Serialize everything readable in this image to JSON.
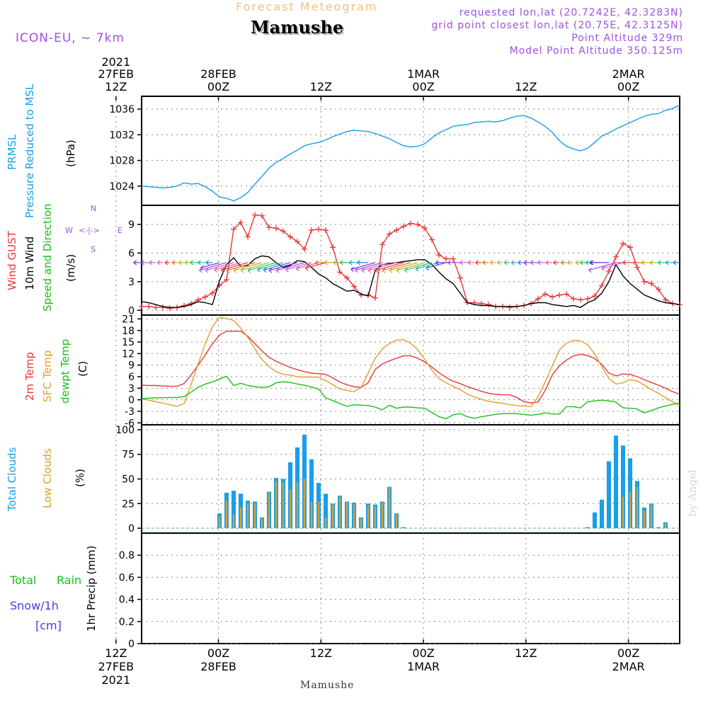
{
  "header": {
    "title": "Forecast Meteogram",
    "location": "Mamushe",
    "model": "ICON-EU, ~ 7km",
    "requested": "requested lon,lat (20.7242E, 42.3283N)",
    "gridpoint": "grid point closest lon,lat (20.75E, 42.3125N)",
    "point_alt": "Point Altitude 329m",
    "model_alt": "Model Point Altitude 350.125m"
  },
  "footer_label": "Mamushe",
  "signature": "by Angel",
  "top_axis": [
    {
      "l1": "2021",
      "l2": "27FEB",
      "l3": "12Z"
    },
    {
      "l1": "",
      "l2": "28FEB",
      "l3": "00Z"
    },
    {
      "l1": "",
      "l2": "",
      "l3": "12Z"
    },
    {
      "l1": "",
      "l2": "1MAR",
      "l3": "00Z"
    },
    {
      "l1": "",
      "l2": "",
      "l3": "12Z"
    },
    {
      "l1": "",
      "l2": "2MAR",
      "l3": "00Z"
    }
  ],
  "bottom_axis": [
    {
      "l1": "12Z",
      "l2": "27FEB",
      "l3": "2021"
    },
    {
      "l1": "00Z",
      "l2": "28FEB",
      "l3": ""
    },
    {
      "l1": "12Z",
      "l2": "",
      "l3": ""
    },
    {
      "l1": "00Z",
      "l2": "1MAR",
      "l3": ""
    },
    {
      "l1": "12Z",
      "l2": "",
      "l3": ""
    },
    {
      "l1": "00Z",
      "l2": "2MAR",
      "l3": ""
    }
  ],
  "colors": {
    "pressure": "#1a9ee8",
    "gust": "#e83838",
    "wind": "#000000",
    "temp2m": "#e83838",
    "sfc": "#e0a030",
    "dewpt": "#18c018",
    "cloud_total": "#1a9ee8",
    "cloud_low": "#d8a030",
    "dir": "#a050e0",
    "rain": "#18c018",
    "snow": "#4040e0"
  },
  "panel_labels": {
    "pressure": [
      "PRMSL",
      "Pressure Reduced to MSL",
      "(hPa)"
    ],
    "wind": [
      "Wind GUST",
      "10m Wind",
      "Speed and Direction",
      "(m/s)"
    ],
    "compass": {
      "n": "N",
      "s": "S",
      "w": "W",
      "e": "E"
    },
    "temp": [
      "2m Temp",
      "SFC Temp",
      "dewpt Temp",
      "(C)"
    ],
    "cloud": [
      "Total Clouds",
      "Low Clouds",
      "(%)"
    ],
    "precip": [
      "Total",
      "Rain",
      "Snow/1h",
      "[cm]",
      "1hr Precip (mm)"
    ]
  },
  "chart_data": {
    "type": "meteogram",
    "time_axis": {
      "start_hour": -9,
      "end_hour": 54,
      "note": "hours relative to 28FEB 00Z"
    },
    "panels": [
      {
        "id": "pressure",
        "type": "line",
        "ylim": [
          1021,
          1038
        ],
        "yticks": [
          1024,
          1028,
          1032,
          1036
        ],
        "series": [
          {
            "name": "PRMSL",
            "values": [
              1024,
              1023.9,
              1023.8,
              1023.7,
              1023.8,
              1024,
              1024.5,
              1024.3,
              1024.4,
              1023.9,
              1023.2,
              1022.3,
              1022.1,
              1021.7,
              1022.2,
              1023,
              1024.3,
              1025.5,
              1026.8,
              1027.7,
              1028.3,
              1029,
              1029.6,
              1030.3,
              1030.6,
              1030.8,
              1031.2,
              1031.7,
              1032.1,
              1032.5,
              1032.7,
              1032.6,
              1032.5,
              1032.2,
              1031.8,
              1031.4,
              1030.8,
              1030.3,
              1030.1,
              1030.2,
              1030.6,
              1031.5,
              1032.3,
              1032.8,
              1033.3,
              1033.5,
              1033.6,
              1033.9,
              1034,
              1034.1,
              1034,
              1034.2,
              1034.6,
              1034.9,
              1035,
              1034.6,
              1034,
              1033.3,
              1032.4,
              1031.1,
              1030.2,
              1029.8,
              1029.5,
              1029.9,
              1030.8,
              1031.8,
              1032.3,
              1032.9,
              1033.4,
              1033.9,
              1034.4,
              1034.9,
              1035.2,
              1035.3,
              1035.8,
              1036.1,
              1036.6
            ]
          }
        ]
      },
      {
        "id": "wind",
        "type": "line",
        "ylim": [
          -0.5,
          11
        ],
        "yticks": [
          0,
          3,
          6,
          9
        ],
        "series": [
          {
            "name": "Wind GUST",
            "values": [
              0.4,
              0.4,
              0.3,
              0.3,
              0.2,
              0.3,
              0.5,
              0.7,
              1.1,
              1.4,
              1.8,
              2.6,
              3.2,
              8.5,
              9.2,
              7.7,
              10,
              9.9,
              8.7,
              8.6,
              8.3,
              7.7,
              7.2,
              6.4,
              8.4,
              8.5,
              8.4,
              6.6,
              4,
              3.4,
              2.5,
              1.6,
              1.6,
              1.3,
              6.9,
              8,
              8.4,
              8.8,
              9.1,
              9,
              8.6,
              7.4,
              5.8,
              5.4,
              5.4,
              3.4,
              0.8,
              0.8,
              0.7,
              0.6,
              0.4,
              0.4,
              0.3,
              0.4,
              0.5,
              0.7,
              1.2,
              1.7,
              1.4,
              1.6,
              1.7,
              1.2,
              1.1,
              1.2,
              1.5,
              2.6,
              4.1,
              5.6,
              7,
              6.6,
              4.5,
              3,
              2.8,
              2.2,
              1.1,
              0.7,
              0.6
            ]
          },
          {
            "name": "10m Wind",
            "values": [
              0.9,
              0.8,
              0.6,
              0.4,
              0.3,
              0.3,
              0.4,
              0.6,
              0.9,
              0.8,
              0.6,
              3.1,
              4.8,
              5.5,
              4.6,
              4.7,
              5.4,
              5.7,
              5.6,
              5,
              4.5,
              4.7,
              5.2,
              5.1,
              4.5,
              3.8,
              3.4,
              2.8,
              2.4,
              2,
              2.1,
              1.7,
              1.5,
              4.2,
              4.8,
              4.9,
              5,
              5.1,
              5.2,
              5.3,
              5.3,
              4.8,
              4,
              3.3,
              2.8,
              1.8,
              0.8,
              0.6,
              0.5,
              0.5,
              0.4,
              0.4,
              0.4,
              0.4,
              0.5,
              0.7,
              0.8,
              0.8,
              0.6,
              0.5,
              0.4,
              0.5,
              0.3,
              0.8,
              1.1,
              1.8,
              3,
              4.8,
              3.6,
              2.8,
              2.2,
              1.6,
              1.3,
              1,
              0.8,
              0.7,
              0.6
            ]
          }
        ],
        "direction_level": 5
      },
      {
        "id": "temp",
        "type": "line",
        "ylim": [
          -6.5,
          22
        ],
        "yticks": [
          -6,
          -3,
          0,
          3,
          6,
          9,
          12,
          15,
          18,
          21
        ],
        "series": [
          {
            "name": "2m Temp",
            "values": [
              3.8,
              3.7,
              3.7,
              3.6,
              3.5,
              3.5,
              4.2,
              6.5,
              9,
              11.7,
              14.5,
              16.8,
              17.8,
              17.8,
              17.8,
              16.5,
              14.6,
              12.7,
              11,
              10,
              9.2,
              8.4,
              7.8,
              7.3,
              6.9,
              6.8,
              6.6,
              5.7,
              4.6,
              3.9,
              3.4,
              3.2,
              4.4,
              7.9,
              9.3,
              10.1,
              10.8,
              11.4,
              11.4,
              10.8,
              9.8,
              8.5,
              7,
              5.8,
              4.8,
              4.2,
              3.4,
              2.8,
              2.2,
              1.7,
              1.4,
              1.3,
              1.3,
              0.6,
              -0.5,
              -0.8,
              -0.6,
              2.4,
              6.4,
              8.8,
              10.3,
              11.4,
              11.8,
              11.5,
              10.7,
              9.2,
              6.9,
              6.2,
              6.7,
              6.6,
              6,
              5.2,
              4.5,
              3.8,
              3,
              2.1,
              1.4
            ]
          },
          {
            "name": "SFC Temp",
            "values": [
              0.2,
              -0.1,
              -0.5,
              -0.9,
              -1.3,
              -1.7,
              -1,
              4,
              9.4,
              14.6,
              19,
              21.4,
              21.1,
              20.6,
              18.6,
              16.2,
              13.2,
              10.5,
              8.6,
              7.3,
              6.6,
              6.4,
              6,
              5.9,
              5.9,
              5.9,
              5,
              3.9,
              2.8,
              2.4,
              2.1,
              3.2,
              6.9,
              10.8,
              13.2,
              14.6,
              15.5,
              15.6,
              14.7,
              13,
              10.5,
              7.7,
              5.5,
              4.4,
              3.5,
              2.6,
              1.5,
              0.7,
              0.1,
              -0.4,
              -0.7,
              -0.9,
              -1.3,
              -1.5,
              -1.6,
              -1.8,
              0.8,
              4.6,
              8.8,
              12.9,
              14.7,
              15.4,
              15.3,
              14.3,
              11.9,
              8.6,
              5.5,
              4.1,
              4.4,
              5.2,
              4.9,
              3.8,
              2.6,
              1.7,
              0.5,
              -0.5,
              -1.5
            ]
          },
          {
            "name": "dewpt Temp",
            "values": [
              0.3,
              0.4,
              0.5,
              0.5,
              0.6,
              0.6,
              0.8,
              2,
              3.3,
              4.1,
              4.6,
              5.4,
              6.1,
              3.7,
              4.3,
              3.7,
              3.4,
              3.2,
              3.4,
              4.4,
              4.7,
              4.5,
              4.1,
              3.8,
              3.3,
              2.8,
              0.5,
              -0.2,
              -1,
              -1.7,
              -1.3,
              -1.4,
              -1.5,
              -1.9,
              -2.6,
              -1.4,
              -2.2,
              -1.9,
              -1.9,
              -2.1,
              -2.2,
              -3.3,
              -4.4,
              -4.9,
              -3.9,
              -3.6,
              -4.4,
              -4.8,
              -4.4,
              -4.1,
              -3.8,
              -3.6,
              -3.6,
              -3.6,
              -3.8,
              -4,
              -3.8,
              -3.4,
              -3.7,
              -3.7,
              -1.8,
              -1.8,
              -2.1,
              -0.5,
              -0.3,
              -0.1,
              -0.3,
              -0.6,
              -2.1,
              -2.2,
              -2.4,
              -3.4,
              -2.8,
              -2.1,
              -1.6,
              -1.2,
              -0.8
            ]
          }
        ]
      },
      {
        "id": "cloud",
        "type": "bar",
        "ylim": [
          -5,
          105
        ],
        "yticks": [
          0,
          25,
          50,
          75,
          100
        ],
        "series": [
          {
            "name": "Total Clouds",
            "values": [
              0,
              0,
              0,
              0,
              0,
              0,
              0,
              0,
              0,
              0,
              0,
              15,
              36,
              38,
              35,
              28,
              27,
              11,
              37,
              51,
              50,
              67,
              82,
              95,
              70,
              46,
              35,
              25,
              33,
              27,
              26,
              11,
              25,
              24,
              27,
              42,
              15,
              1,
              0,
              0,
              0,
              0,
              0,
              0,
              0,
              0,
              0,
              0,
              0,
              0,
              0,
              0,
              0,
              0,
              0,
              0,
              0,
              0,
              0,
              0,
              0,
              0,
              0,
              1,
              16,
              29,
              68,
              94,
              84,
              71,
              48,
              21,
              25,
              1,
              6,
              0,
              0
            ]
          },
          {
            "name": "Low Clouds",
            "values": [
              0,
              0,
              0,
              0,
              0,
              0,
              0,
              0,
              0,
              0,
              0,
              12,
              28,
              14,
              21,
              25,
              25,
              10,
              36,
              48,
              47,
              39,
              47,
              50,
              27,
              27,
              11,
              24,
              32,
              26,
              25,
              10,
              23,
              22,
              26,
              41,
              14,
              0,
              0,
              0,
              0,
              0,
              0,
              0,
              0,
              0,
              0,
              0,
              0,
              0,
              0,
              0,
              0,
              0,
              0,
              0,
              0,
              0,
              0,
              0,
              0,
              0,
              0,
              0,
              0,
              0,
              0,
              0,
              32,
              37,
              42,
              18,
              24,
              0,
              5,
              0,
              0
            ]
          }
        ]
      },
      {
        "id": "precip",
        "type": "bar",
        "ylim": [
          0,
          1
        ],
        "yticks": [
          0,
          0.2,
          0.4,
          0.6,
          0.8
        ],
        "series": [
          {
            "name": "Total Rain",
            "values": []
          },
          {
            "name": "Snow/1h",
            "values": []
          }
        ]
      }
    ]
  }
}
